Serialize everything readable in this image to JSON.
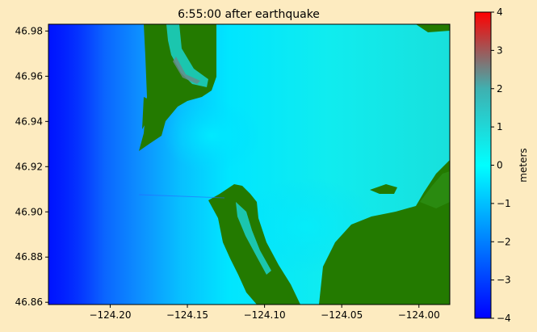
{
  "chart_data": {
    "type": "heatmap",
    "title": "6:55:00 after earthquake",
    "xlabel": "",
    "ylabel": "",
    "xlim": [
      -124.24,
      -123.98
    ],
    "ylim": [
      46.859,
      46.983
    ],
    "x_ticks": [
      {
        "value": -124.2,
        "label": "−124.20"
      },
      {
        "value": -124.15,
        "label": "−124.15"
      },
      {
        "value": -124.1,
        "label": "−124.10"
      },
      {
        "value": -124.05,
        "label": "−124.05"
      },
      {
        "value": -124.0,
        "label": "−124.00"
      }
    ],
    "y_ticks": [
      {
        "value": 46.86,
        "label": "46.86"
      },
      {
        "value": 46.88,
        "label": "46.88"
      },
      {
        "value": 46.9,
        "label": "46.90"
      },
      {
        "value": 46.92,
        "label": "46.92"
      },
      {
        "value": 46.94,
        "label": "46.94"
      },
      {
        "value": 46.96,
        "label": "46.96"
      },
      {
        "value": 46.98,
        "label": "46.98"
      }
    ],
    "colorbar": {
      "label": "meters",
      "range": [
        -4,
        4
      ],
      "ticks": [
        {
          "value": 4,
          "label": "4"
        },
        {
          "value": 3,
          "label": "3"
        },
        {
          "value": 2,
          "label": "2"
        },
        {
          "value": 1,
          "label": "1"
        },
        {
          "value": 0,
          "label": "0"
        },
        {
          "value": -1,
          "label": "−1"
        },
        {
          "value": -2,
          "label": "−2"
        },
        {
          "value": -3,
          "label": "−3"
        },
        {
          "value": -4,
          "label": "−4"
        }
      ],
      "colors": [
        "#0000ff",
        "#00ffff",
        "#ff0000"
      ]
    },
    "land_color": "#237a00",
    "background_color": "#fdebc0"
  }
}
